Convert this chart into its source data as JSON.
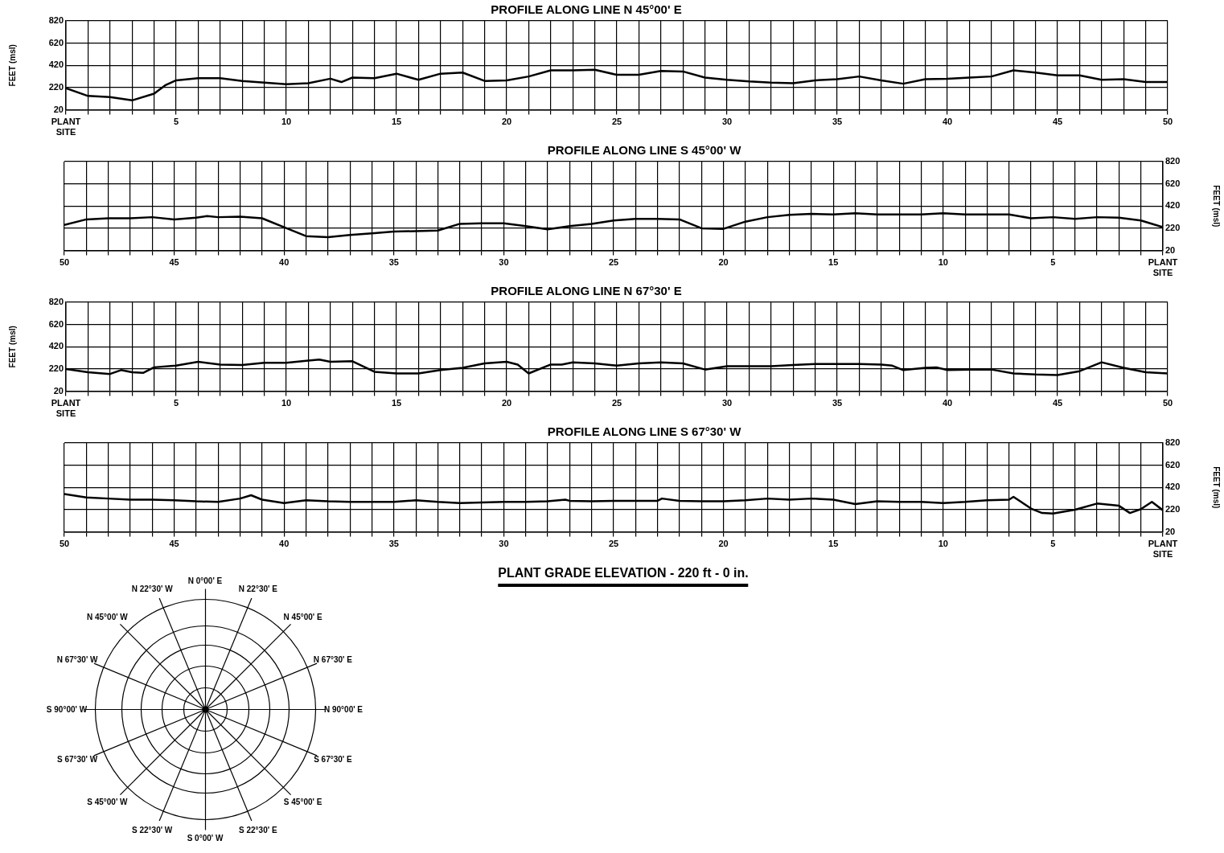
{
  "chart_data": [
    {
      "type": "line",
      "title": "PROFILE ALONG LINE N 45°00' E",
      "ylabel": "FEET (msl)",
      "grid": true,
      "xlim": [
        0,
        50
      ],
      "ylim": [
        20,
        820
      ],
      "yticks": [
        20,
        220,
        420,
        620,
        820
      ],
      "xticks": [
        {
          "value": 0,
          "label": "PLANT SITE"
        },
        {
          "value": 1,
          "label": null
        },
        {
          "value": 2,
          "label": null
        },
        {
          "value": 3,
          "label": null
        },
        {
          "value": 4,
          "label": null
        },
        5,
        {
          "value": 6,
          "label": null
        },
        {
          "value": 7,
          "label": null
        },
        {
          "value": 8,
          "label": null
        },
        {
          "value": 9,
          "label": null
        },
        10,
        {
          "value": 11,
          "label": null
        },
        {
          "value": 12,
          "label": null
        },
        {
          "value": 13,
          "label": null
        },
        {
          "value": 14,
          "label": null
        },
        15,
        {
          "value": 16,
          "label": null
        },
        {
          "value": 17,
          "label": null
        },
        {
          "value": 18,
          "label": null
        },
        {
          "value": 19,
          "label": null
        },
        20,
        {
          "value": 21,
          "label": null
        },
        {
          "value": 22,
          "label": null
        },
        {
          "value": 23,
          "label": null
        },
        {
          "value": 24,
          "label": null
        },
        25,
        {
          "value": 26,
          "label": null
        },
        {
          "value": 27,
          "label": null
        },
        {
          "value": 28,
          "label": null
        },
        {
          "value": 29,
          "label": null
        },
        30,
        {
          "value": 31,
          "label": null
        },
        {
          "value": 32,
          "label": null
        },
        {
          "value": 33,
          "label": null
        },
        {
          "value": 34,
          "label": null
        },
        35,
        {
          "value": 36,
          "label": null
        },
        {
          "value": 37,
          "label": null
        },
        {
          "value": 38,
          "label": null
        },
        {
          "value": 39,
          "label": null
        },
        40,
        {
          "value": 41,
          "label": null
        },
        {
          "value": 42,
          "label": null
        },
        {
          "value": 43,
          "label": null
        },
        {
          "value": 44,
          "label": null
        },
        45,
        {
          "value": 46,
          "label": null
        },
        {
          "value": 47,
          "label": null
        },
        {
          "value": 48,
          "label": null
        },
        {
          "value": 49,
          "label": null
        },
        50
      ],
      "series": [
        {
          "color": "#000000",
          "x": [
            0,
            1,
            2,
            3,
            4,
            4.5,
            5,
            6,
            7,
            8,
            9,
            10,
            11,
            12,
            12.5,
            13,
            14,
            15,
            16,
            17,
            18,
            19,
            20,
            21,
            22,
            23,
            24,
            25,
            26,
            27,
            28,
            29,
            30,
            31,
            32,
            33,
            34,
            35,
            36,
            37,
            38,
            39,
            40,
            41,
            42,
            43,
            44,
            45,
            46,
            47,
            48,
            49,
            50
          ],
          "values": [
            215,
            145,
            135,
            105,
            165,
            240,
            285,
            305,
            305,
            280,
            265,
            250,
            260,
            300,
            270,
            310,
            305,
            345,
            290,
            345,
            355,
            280,
            285,
            320,
            375,
            375,
            380,
            335,
            335,
            370,
            365,
            310,
            290,
            275,
            265,
            260,
            285,
            295,
            320,
            285,
            255,
            295,
            300,
            310,
            320,
            375,
            355,
            330,
            330,
            290,
            295,
            270,
            270
          ]
        }
      ]
    },
    {
      "type": "line",
      "title": "PROFILE ALONG LINE S 45°00' W",
      "y2label": "FEET (msl)",
      "grid": true,
      "xlim": [
        50,
        0
      ],
      "y2lim": [
        20,
        820
      ],
      "y2ticks": [
        20,
        220,
        420,
        620,
        820
      ],
      "xticks": [
        {
          "value": 0,
          "label": "PLANT SITE"
        },
        {
          "value": 1,
          "label": null
        },
        {
          "value": 2,
          "label": null
        },
        {
          "value": 3,
          "label": null
        },
        {
          "value": 4,
          "label": null
        },
        5,
        {
          "value": 6,
          "label": null
        },
        {
          "value": 7,
          "label": null
        },
        {
          "value": 8,
          "label": null
        },
        {
          "value": 9,
          "label": null
        },
        10,
        {
          "value": 11,
          "label": null
        },
        {
          "value": 12,
          "label": null
        },
        {
          "value": 13,
          "label": null
        },
        {
          "value": 14,
          "label": null
        },
        15,
        {
          "value": 16,
          "label": null
        },
        {
          "value": 17,
          "label": null
        },
        {
          "value": 18,
          "label": null
        },
        {
          "value": 19,
          "label": null
        },
        20,
        {
          "value": 21,
          "label": null
        },
        {
          "value": 22,
          "label": null
        },
        {
          "value": 23,
          "label": null
        },
        {
          "value": 24,
          "label": null
        },
        25,
        {
          "value": 26,
          "label": null
        },
        {
          "value": 27,
          "label": null
        },
        {
          "value": 28,
          "label": null
        },
        {
          "value": 29,
          "label": null
        },
        30,
        {
          "value": 31,
          "label": null
        },
        {
          "value": 32,
          "label": null
        },
        {
          "value": 33,
          "label": null
        },
        {
          "value": 34,
          "label": null
        },
        35,
        {
          "value": 36,
          "label": null
        },
        {
          "value": 37,
          "label": null
        },
        {
          "value": 38,
          "label": null
        },
        {
          "value": 39,
          "label": null
        },
        40,
        {
          "value": 41,
          "label": null
        },
        {
          "value": 42,
          "label": null
        },
        {
          "value": 43,
          "label": null
        },
        {
          "value": 44,
          "label": null
        },
        45,
        {
          "value": 46,
          "label": null
        },
        {
          "value": 47,
          "label": null
        },
        {
          "value": 48,
          "label": null
        },
        {
          "value": 49,
          "label": null
        },
        50
      ],
      "series": [
        {
          "color": "#000000",
          "axis": "y2",
          "x": [
            50,
            49,
            48,
            47,
            46,
            45,
            44,
            43.5,
            43,
            42,
            41,
            40,
            39,
            38,
            37,
            36,
            35,
            34,
            33,
            32,
            31,
            30,
            29,
            28,
            27,
            26,
            25,
            24,
            23,
            22,
            21,
            20,
            19,
            18,
            17,
            16,
            15,
            14,
            13,
            12,
            11,
            10,
            9,
            8,
            7,
            6,
            5,
            4,
            3,
            2,
            1,
            0
          ],
          "values": [
            250,
            300,
            310,
            310,
            320,
            300,
            315,
            330,
            320,
            325,
            310,
            230,
            150,
            140,
            160,
            175,
            190,
            195,
            200,
            260,
            265,
            265,
            240,
            210,
            240,
            260,
            290,
            305,
            305,
            300,
            220,
            215,
            280,
            320,
            340,
            350,
            345,
            355,
            345,
            345,
            345,
            355,
            345,
            345,
            345,
            310,
            320,
            305,
            320,
            315,
            290,
            230
          ]
        }
      ]
    },
    {
      "type": "line",
      "title": "PROFILE ALONG LINE N 67°30' E",
      "ylabel": "FEET (msl)",
      "grid": true,
      "xlim": [
        0,
        50
      ],
      "ylim": [
        20,
        820
      ],
      "yticks": [
        20,
        220,
        420,
        620,
        820
      ],
      "xticks": [
        {
          "value": 0,
          "label": "PLANT SITE"
        },
        {
          "value": 1,
          "label": null
        },
        {
          "value": 2,
          "label": null
        },
        {
          "value": 3,
          "label": null
        },
        {
          "value": 4,
          "label": null
        },
        5,
        {
          "value": 6,
          "label": null
        },
        {
          "value": 7,
          "label": null
        },
        {
          "value": 8,
          "label": null
        },
        {
          "value": 9,
          "label": null
        },
        10,
        {
          "value": 11,
          "label": null
        },
        {
          "value": 12,
          "label": null
        },
        {
          "value": 13,
          "label": null
        },
        {
          "value": 14,
          "label": null
        },
        15,
        {
          "value": 16,
          "label": null
        },
        {
          "value": 17,
          "label": null
        },
        {
          "value": 18,
          "label": null
        },
        {
          "value": 19,
          "label": null
        },
        20,
        {
          "value": 21,
          "label": null
        },
        {
          "value": 22,
          "label": null
        },
        {
          "value": 23,
          "label": null
        },
        {
          "value": 24,
          "label": null
        },
        25,
        {
          "value": 26,
          "label": null
        },
        {
          "value": 27,
          "label": null
        },
        {
          "value": 28,
          "label": null
        },
        {
          "value": 29,
          "label": null
        },
        30,
        {
          "value": 31,
          "label": null
        },
        {
          "value": 32,
          "label": null
        },
        {
          "value": 33,
          "label": null
        },
        {
          "value": 34,
          "label": null
        },
        35,
        {
          "value": 36,
          "label": null
        },
        {
          "value": 37,
          "label": null
        },
        {
          "value": 38,
          "label": null
        },
        {
          "value": 39,
          "label": null
        },
        40,
        {
          "value": 41,
          "label": null
        },
        {
          "value": 42,
          "label": null
        },
        {
          "value": 43,
          "label": null
        },
        {
          "value": 44,
          "label": null
        },
        45,
        {
          "value": 46,
          "label": null
        },
        {
          "value": 47,
          "label": null
        },
        {
          "value": 48,
          "label": null
        },
        {
          "value": 49,
          "label": null
        },
        50
      ],
      "series": [
        {
          "color": "#000000",
          "x": [
            0,
            1,
            2,
            2.5,
            3,
            3.5,
            4,
            5,
            6,
            7,
            8,
            9,
            10,
            11,
            11.5,
            12,
            13,
            14,
            15,
            16,
            17,
            18,
            19,
            20,
            20.5,
            21,
            22,
            22.5,
            23,
            24,
            25,
            26,
            27,
            28,
            29,
            30,
            31,
            32,
            33,
            34,
            35,
            36,
            37,
            37.5,
            38,
            39,
            39.5,
            40,
            41,
            42,
            43,
            44,
            45,
            46,
            47,
            48,
            49,
            50
          ],
          "values": [
            220,
            190,
            175,
            210,
            190,
            185,
            235,
            250,
            285,
            260,
            255,
            275,
            275,
            295,
            305,
            285,
            290,
            195,
            180,
            180,
            210,
            230,
            270,
            285,
            260,
            180,
            260,
            260,
            280,
            270,
            250,
            270,
            280,
            270,
            215,
            245,
            245,
            245,
            255,
            265,
            265,
            265,
            260,
            250,
            210,
            230,
            235,
            210,
            215,
            215,
            180,
            170,
            165,
            200,
            280,
            230,
            190,
            180
          ]
        }
      ]
    },
    {
      "type": "line",
      "title": "PROFILE ALONG LINE S 67°30' W",
      "y2label": "FEET (msl)",
      "grid": true,
      "xlim": [
        50,
        0
      ],
      "y2lim": [
        20,
        820
      ],
      "y2ticks": [
        20,
        220,
        420,
        620,
        820
      ],
      "annotations": [
        "PLANT GRADE ELEVATION - 220 ft - 0 in."
      ],
      "xticks": [
        {
          "value": 0,
          "label": "PLANT SITE"
        },
        {
          "value": 1,
          "label": null
        },
        {
          "value": 2,
          "label": null
        },
        {
          "value": 3,
          "label": null
        },
        {
          "value": 4,
          "label": null
        },
        5,
        {
          "value": 6,
          "label": null
        },
        {
          "value": 7,
          "label": null
        },
        {
          "value": 8,
          "label": null
        },
        {
          "value": 9,
          "label": null
        },
        10,
        {
          "value": 11,
          "label": null
        },
        {
          "value": 12,
          "label": null
        },
        {
          "value": 13,
          "label": null
        },
        {
          "value": 14,
          "label": null
        },
        15,
        {
          "value": 16,
          "label": null
        },
        {
          "value": 17,
          "label": null
        },
        {
          "value": 18,
          "label": null
        },
        {
          "value": 19,
          "label": null
        },
        20,
        {
          "value": 21,
          "label": null
        },
        {
          "value": 22,
          "label": null
        },
        {
          "value": 23,
          "label": null
        },
        {
          "value": 24,
          "label": null
        },
        25,
        {
          "value": 26,
          "label": null
        },
        {
          "value": 27,
          "label": null
        },
        {
          "value": 28,
          "label": null
        },
        {
          "value": 29,
          "label": null
        },
        30,
        {
          "value": 31,
          "label": null
        },
        {
          "value": 32,
          "label": null
        },
        {
          "value": 33,
          "label": null
        },
        {
          "value": 34,
          "label": null
        },
        35,
        {
          "value": 36,
          "label": null
        },
        {
          "value": 37,
          "label": null
        },
        {
          "value": 38,
          "label": null
        },
        {
          "value": 39,
          "label": null
        },
        40,
        {
          "value": 41,
          "label": null
        },
        {
          "value": 42,
          "label": null
        },
        {
          "value": 43,
          "label": null
        },
        {
          "value": 44,
          "label": null
        },
        45,
        {
          "value": 46,
          "label": null
        },
        {
          "value": 47,
          "label": null
        },
        {
          "value": 48,
          "label": null
        },
        {
          "value": 49,
          "label": null
        },
        50
      ],
      "series": [
        {
          "color": "#000000",
          "axis": "y2",
          "x": [
            50,
            49,
            48,
            47,
            46,
            45,
            44,
            43,
            42,
            41.5,
            41,
            40,
            39,
            38,
            37,
            36,
            35,
            34,
            33,
            32,
            31,
            30,
            29,
            28,
            27.2,
            27,
            26,
            25,
            24,
            23,
            22.8,
            22,
            21,
            20,
            19,
            18,
            17,
            16,
            15,
            14,
            13,
            12,
            11,
            10,
            9,
            8,
            7,
            6.8,
            6,
            5.5,
            5,
            4,
            3,
            2,
            1.5,
            1,
            0.5,
            0
          ],
          "values": [
            360,
            330,
            320,
            310,
            310,
            305,
            295,
            290,
            320,
            350,
            310,
            280,
            305,
            295,
            290,
            290,
            290,
            305,
            290,
            280,
            285,
            290,
            290,
            295,
            310,
            300,
            295,
            300,
            300,
            300,
            320,
            300,
            295,
            295,
            305,
            320,
            310,
            320,
            310,
            270,
            295,
            290,
            290,
            280,
            290,
            305,
            310,
            335,
            230,
            190,
            185,
            220,
            275,
            255,
            190,
            225,
            290,
            215
          ]
        }
      ]
    },
    {
      "type": "other",
      "annotations": [
        "N 0°00' E",
        "N 22°30' E",
        "N 45°00' E",
        "N 67°30' E",
        "N 90°00' E",
        "S 67°30' E",
        "S 45°00' E",
        "S 22°30' E",
        "S 0°00' W",
        "S 22°30' W",
        "S 45°00' W",
        "S 67°30' W",
        "S 90°00' W",
        "N 67°30' W",
        "N 45°00' W",
        "N 22°30' W"
      ]
    }
  ]
}
